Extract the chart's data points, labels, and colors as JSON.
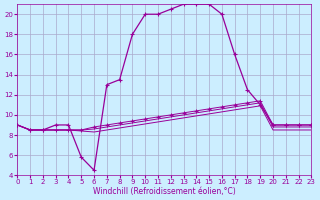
{
  "xlabel": "Windchill (Refroidissement éolien,°C)",
  "xlim": [
    0,
    23
  ],
  "ylim": [
    4,
    21
  ],
  "yticks": [
    4,
    6,
    8,
    10,
    12,
    14,
    16,
    18,
    20
  ],
  "xticks": [
    0,
    1,
    2,
    3,
    4,
    5,
    6,
    7,
    8,
    9,
    10,
    11,
    12,
    13,
    14,
    15,
    16,
    17,
    18,
    19,
    20,
    21,
    22,
    23
  ],
  "bg_color": "#cceeff",
  "line_color": "#990099",
  "grid_color": "#aaaacc",
  "x": [
    0,
    1,
    2,
    3,
    4,
    5,
    6,
    7,
    8,
    9,
    10,
    11,
    12,
    13,
    14,
    15,
    16,
    17,
    18,
    19,
    20,
    21,
    22,
    23
  ],
  "y_main": [
    9.0,
    8.5,
    8.5,
    9.0,
    9.0,
    5.8,
    4.5,
    13.0,
    13.5,
    18.0,
    20.0,
    20.0,
    20.5,
    21.0,
    21.0,
    21.0,
    20.0,
    16.0,
    12.5,
    11.0,
    9.0,
    9.0,
    9.0,
    9.0
  ],
  "y_band1": [
    9.0,
    8.5,
    8.5,
    8.5,
    8.5,
    8.5,
    8.8,
    9.0,
    9.2,
    9.4,
    9.6,
    9.8,
    10.0,
    10.2,
    10.4,
    10.6,
    10.8,
    11.0,
    11.2,
    11.4,
    9.0,
    9.0,
    9.0,
    9.0
  ],
  "y_band2": [
    9.0,
    8.5,
    8.5,
    8.5,
    8.5,
    8.5,
    8.6,
    8.8,
    9.0,
    9.2,
    9.4,
    9.6,
    9.8,
    10.0,
    10.2,
    10.4,
    10.6,
    10.8,
    11.0,
    11.2,
    8.8,
    8.8,
    8.8,
    8.8
  ],
  "y_band3": [
    9.0,
    8.5,
    8.5,
    8.5,
    8.5,
    8.4,
    8.3,
    8.5,
    8.7,
    8.9,
    9.1,
    9.3,
    9.5,
    9.7,
    9.9,
    10.1,
    10.3,
    10.5,
    10.7,
    10.9,
    8.5,
    8.5,
    8.5,
    8.5
  ]
}
